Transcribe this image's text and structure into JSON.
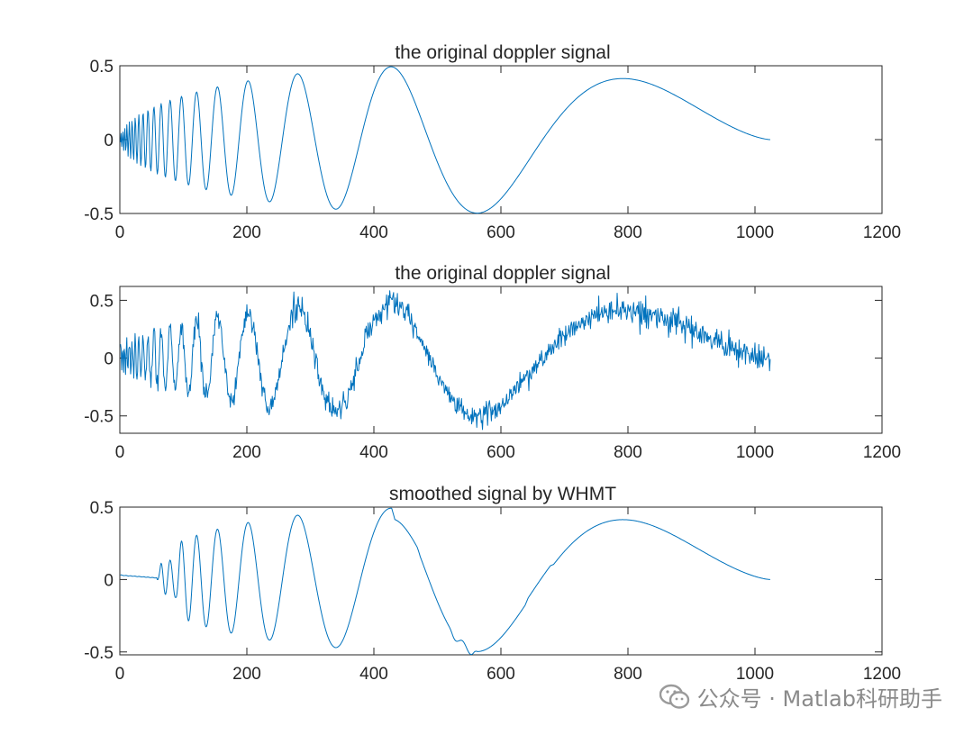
{
  "chart_data": [
    {
      "type": "line",
      "title": "the original doppler signal",
      "signal": "doppler_clean",
      "xlim": [
        0,
        1200
      ],
      "ylim": [
        -0.5,
        0.5
      ],
      "xticks": [
        0,
        200,
        400,
        600,
        800,
        1000,
        1200
      ],
      "yticks": [
        -0.5,
        0,
        0.5
      ],
      "xtick_labels": [
        "0",
        "200",
        "400",
        "600",
        "800",
        "1000",
        "1200"
      ],
      "ytick_labels": [
        "-0.5",
        "0",
        "0.5"
      ],
      "n_points": 1024,
      "xlabel": "",
      "ylabel": "",
      "grid": false
    },
    {
      "type": "line",
      "title": "the original doppler signal",
      "signal": "doppler_noisy",
      "xlim": [
        0,
        1200
      ],
      "ylim": [
        -0.65,
        0.62
      ],
      "xticks": [
        0,
        200,
        400,
        600,
        800,
        1000,
        1200
      ],
      "yticks": [
        -0.5,
        0,
        0.5
      ],
      "xtick_labels": [
        "0",
        "200",
        "400",
        "600",
        "800",
        "1000",
        "1200"
      ],
      "ytick_labels": [
        "-0.5",
        "0",
        "0.5"
      ],
      "n_points": 1024,
      "noise_std": 0.05,
      "xlabel": "",
      "ylabel": "",
      "grid": false
    },
    {
      "type": "line",
      "title": "smoothed signal by WHMT",
      "signal": "whmt_smoothed",
      "xlim": [
        0,
        1200
      ],
      "ylim": [
        -0.52,
        0.5
      ],
      "xticks": [
        0,
        200,
        400,
        600,
        800,
        1000,
        1200
      ],
      "yticks": [
        -0.5,
        0,
        0.5
      ],
      "xtick_labels": [
        "0",
        "200",
        "400",
        "600",
        "800",
        "1000",
        "1200"
      ],
      "ytick_labels": [
        "-0.5",
        "0",
        "0.5"
      ],
      "n_points": 1024,
      "xlabel": "",
      "ylabel": "",
      "grid": false
    }
  ],
  "style": {
    "line_color": "#0072bd",
    "axis_color": "#262626",
    "box_color": "#262626"
  },
  "watermark": {
    "text": "公众号 · Matlab科研助手",
    "icon": "wechat-icon"
  }
}
